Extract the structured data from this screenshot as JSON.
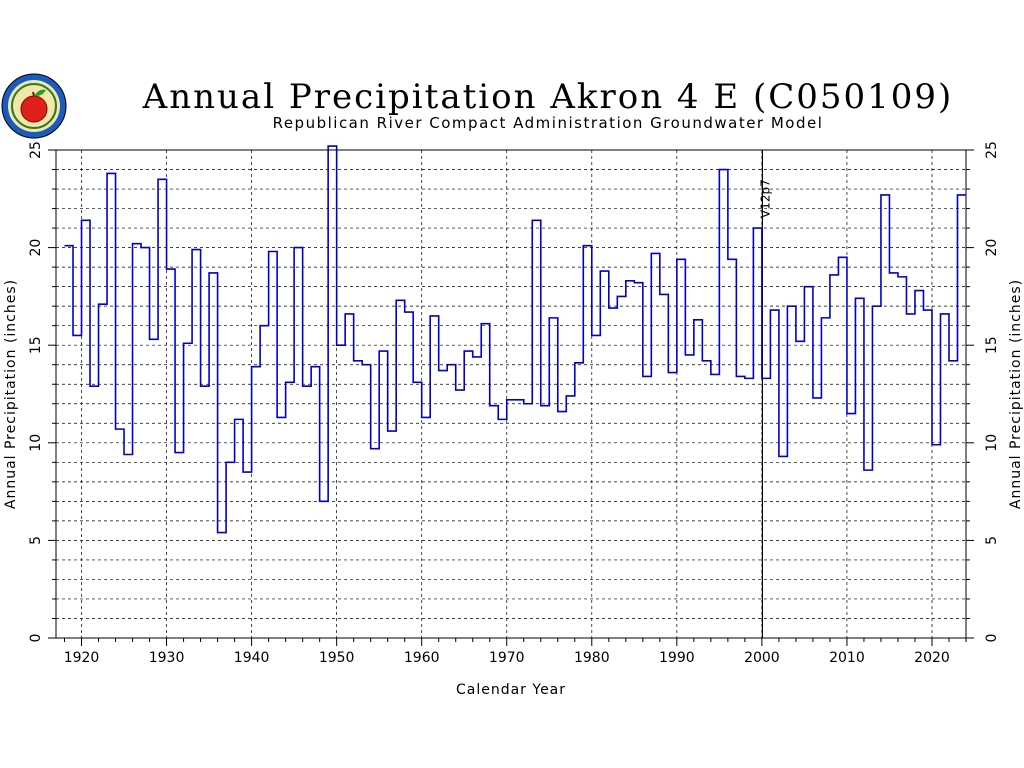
{
  "chart_data": {
    "type": "line",
    "step": true,
    "title": "Annual Precipitation Akron 4 E (C050109)",
    "subtitle": "Republican River Compact Administration Groundwater Model",
    "xlabel": "Calendar Year",
    "ylabel_left": "Annual Precipitation (inches)",
    "ylabel_right": "Annual Precipitation (inches)",
    "xlim": [
      1917,
      2024
    ],
    "ylim": [
      0,
      25
    ],
    "xticks": [
      1920,
      1930,
      1940,
      1950,
      1960,
      1970,
      1980,
      1990,
      2000,
      2010,
      2020
    ],
    "yticks": [
      0,
      5,
      10,
      15,
      20,
      25
    ],
    "grid": true,
    "line_color": "#0000cc",
    "annotation": {
      "label": "V12p7",
      "x": 2001
    },
    "series": [
      {
        "x": [
          1918,
          1919,
          1920,
          1921,
          1922,
          1923,
          1924,
          1925,
          1926,
          1927,
          1928,
          1929,
          1930,
          1931,
          1932,
          1933,
          1934,
          1935,
          1936,
          1937,
          1938,
          1939,
          1940,
          1941,
          1942,
          1943,
          1944,
          1945,
          1946,
          1947,
          1948,
          1949,
          1950,
          1951,
          1952,
          1953,
          1954,
          1955,
          1956,
          1957,
          1958,
          1959,
          1960,
          1961,
          1962,
          1963,
          1964,
          1965,
          1966,
          1967,
          1968,
          1969,
          1970,
          1971,
          1972,
          1973,
          1974,
          1975,
          1976,
          1977,
          1978,
          1979,
          1980,
          1981,
          1982,
          1983,
          1984,
          1985,
          1986,
          1987,
          1988,
          1989,
          1990,
          1991,
          1992,
          1993,
          1994,
          1995,
          1996,
          1997,
          1998,
          1999,
          2000,
          2001,
          2002,
          2003,
          2004,
          2005,
          2006,
          2007,
          2008,
          2009,
          2010,
          2011,
          2012,
          2013,
          2014,
          2015,
          2016,
          2017,
          2018,
          2019,
          2020,
          2021,
          2022,
          2023
        ],
        "values": [
          20.1,
          15.5,
          21.4,
          12.9,
          17.1,
          23.8,
          10.7,
          9.4,
          20.2,
          20.0,
          15.3,
          23.5,
          18.9,
          9.5,
          15.1,
          19.9,
          12.9,
          18.7,
          5.4,
          9.0,
          11.2,
          8.5,
          13.9,
          16.0,
          19.8,
          11.3,
          13.1,
          20.0,
          12.9,
          13.9,
          7.0,
          25.2,
          15.0,
          16.6,
          14.2,
          14.0,
          9.7,
          14.7,
          10.6,
          17.3,
          16.7,
          13.1,
          11.3,
          16.5,
          13.7,
          14.0,
          12.7,
          14.7,
          14.4,
          16.1,
          11.9,
          11.2,
          12.2,
          12.2,
          12.0,
          21.4,
          11.9,
          16.4,
          11.6,
          12.4,
          14.1,
          20.1,
          15.5,
          18.8,
          16.9,
          17.5,
          18.3,
          18.2,
          13.4,
          19.7,
          17.6,
          13.6,
          19.4,
          14.5,
          16.3,
          14.2,
          13.5,
          24.0,
          19.4,
          13.4,
          13.3,
          21.0,
          13.3,
          16.8,
          9.3,
          17.0,
          15.2,
          18.0,
          12.3,
          16.4,
          18.6,
          19.5,
          11.5,
          17.4,
          8.6,
          17.0,
          22.7,
          18.7,
          18.5,
          16.6,
          17.8,
          16.8,
          9.9,
          16.6,
          14.2,
          22.7
        ]
      }
    ]
  }
}
